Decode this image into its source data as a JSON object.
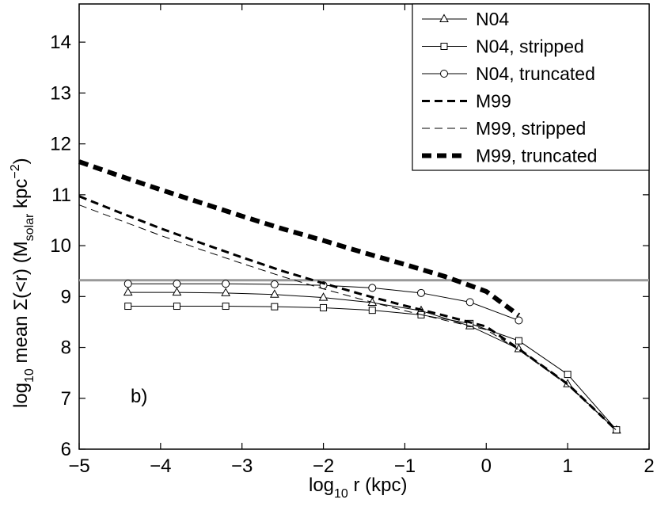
{
  "chart_data": {
    "type": "line",
    "title": "",
    "xlabel": "log",
    "xlabel_sub": "10",
    "xlabel_rest": " r (kpc)",
    "ylabel_parts": {
      "a": "log",
      "a_sub": "10",
      "b": " mean Σ(<r) (M",
      "b_sub": "solar",
      "c": " kpc",
      "c_sup": "−2",
      "d": ")"
    },
    "xlim": [
      -5,
      2
    ],
    "ylim": [
      6,
      14.75
    ],
    "xticks": [
      -5,
      -4,
      -3,
      -2,
      -1,
      0,
      1,
      2
    ],
    "xtick_labels": [
      "−5",
      "−4",
      "−3",
      "−2",
      "−1",
      "0",
      "1",
      "2"
    ],
    "yticks": [
      6,
      7,
      8,
      9,
      10,
      11,
      12,
      13,
      14
    ],
    "ytick_labels": [
      "6",
      "7",
      "8",
      "9",
      "10",
      "11",
      "12",
      "13",
      "14"
    ],
    "grid": false,
    "legend_position": "top-right",
    "annotation": "b)",
    "hline": {
      "y": 9.32,
      "color": "#999999"
    },
    "series": [
      {
        "name": "N04",
        "marker": "triangle",
        "dash": "solid",
        "weight": "thin",
        "color": "#000000",
        "x": [
          -4.4,
          -3.8,
          -3.2,
          -2.6,
          -2.0,
          -1.4,
          -0.8,
          -0.2,
          0.4,
          1.0,
          1.6
        ],
        "y": [
          9.08,
          9.08,
          9.07,
          9.04,
          8.98,
          8.88,
          8.72,
          8.42,
          7.97,
          7.28,
          6.37
        ]
      },
      {
        "name": "N04, stripped",
        "marker": "square",
        "dash": "solid",
        "weight": "thin",
        "color": "#000000",
        "x": [
          -4.4,
          -3.8,
          -3.2,
          -2.6,
          -2.0,
          -1.4,
          -0.8,
          -0.2,
          0.4,
          1.0,
          1.6
        ],
        "y": [
          8.81,
          8.81,
          8.81,
          8.8,
          8.78,
          8.73,
          8.64,
          8.47,
          8.13,
          7.47,
          6.38
        ]
      },
      {
        "name": "N04, truncated",
        "marker": "circle",
        "dash": "solid",
        "weight": "thin",
        "color": "#000000",
        "x": [
          -4.4,
          -3.8,
          -3.2,
          -2.6,
          -2.0,
          -1.4,
          -0.8,
          -0.2,
          0.4
        ],
        "y": [
          9.25,
          9.25,
          9.25,
          9.24,
          9.22,
          9.17,
          9.07,
          8.89,
          8.53
        ]
      },
      {
        "name": "M99",
        "marker": "none",
        "dash": "dashed",
        "weight": "medium",
        "color": "#000000",
        "x": [
          -5.0,
          -4.5,
          -4.0,
          -3.5,
          -3.0,
          -2.5,
          -2.0,
          -1.5,
          -1.0,
          -0.5,
          0.0,
          0.4,
          1.0,
          1.6
        ],
        "y": [
          10.97,
          10.65,
          10.34,
          10.05,
          9.77,
          9.5,
          9.26,
          9.03,
          8.82,
          8.62,
          8.41,
          7.97,
          7.28,
          6.37
        ]
      },
      {
        "name": "M99, stripped",
        "marker": "none",
        "dash": "dashed",
        "weight": "thin",
        "color": "#000000",
        "x": [
          -5.0,
          -4.5,
          -4.0,
          -3.5,
          -3.0,
          -2.5,
          -2.0,
          -1.5,
          -1.0,
          -0.5,
          0.0,
          0.4,
          1.0,
          1.6
        ],
        "y": [
          10.8,
          10.5,
          10.2,
          9.92,
          9.65,
          9.39,
          9.15,
          8.93,
          8.72,
          8.53,
          8.35,
          7.95,
          7.26,
          6.37
        ]
      },
      {
        "name": "M99, truncated",
        "marker": "none",
        "dash": "dashed",
        "weight": "thick",
        "color": "#000000",
        "x": [
          -5.0,
          -4.5,
          -4.0,
          -3.5,
          -3.0,
          -2.5,
          -2.0,
          -1.5,
          -1.0,
          -0.5,
          0.0,
          0.4
        ],
        "y": [
          11.65,
          11.37,
          11.1,
          10.84,
          10.58,
          10.33,
          10.1,
          9.86,
          9.63,
          9.39,
          9.1,
          8.63
        ]
      }
    ]
  }
}
